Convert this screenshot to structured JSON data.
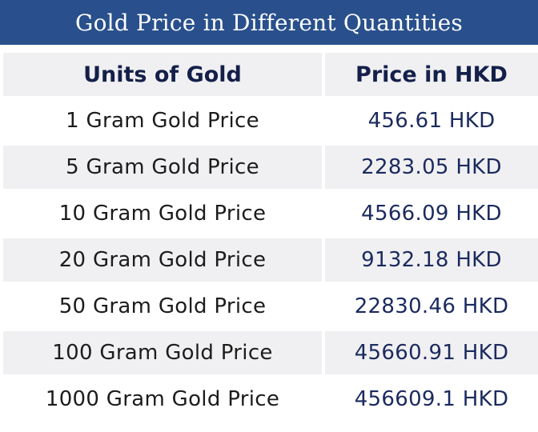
{
  "title": "Gold Price in Different Quantities",
  "table": {
    "headers": [
      "Units of Gold",
      "Price in HKD"
    ],
    "rows": [
      {
        "unit": "1 Gram Gold Price",
        "price": "456.61 HKD"
      },
      {
        "unit": "5 Gram Gold Price",
        "price": "2283.05 HKD"
      },
      {
        "unit": "10 Gram Gold Price",
        "price": "4566.09 HKD"
      },
      {
        "unit": "20 Gram Gold Price",
        "price": "9132.18 HKD"
      },
      {
        "unit": "50 Gram Gold Price",
        "price": "22830.46 HKD"
      },
      {
        "unit": "100 Gram Gold Price",
        "price": "45660.91 HKD"
      },
      {
        "unit": "1000 Gram Gold Price",
        "price": "456609.1 HKD"
      }
    ]
  },
  "colors": {
    "title_background": "#29508c",
    "header_text": "#14204a",
    "price_text": "#1b2a5e",
    "stripe": "#f0f0f2"
  }
}
